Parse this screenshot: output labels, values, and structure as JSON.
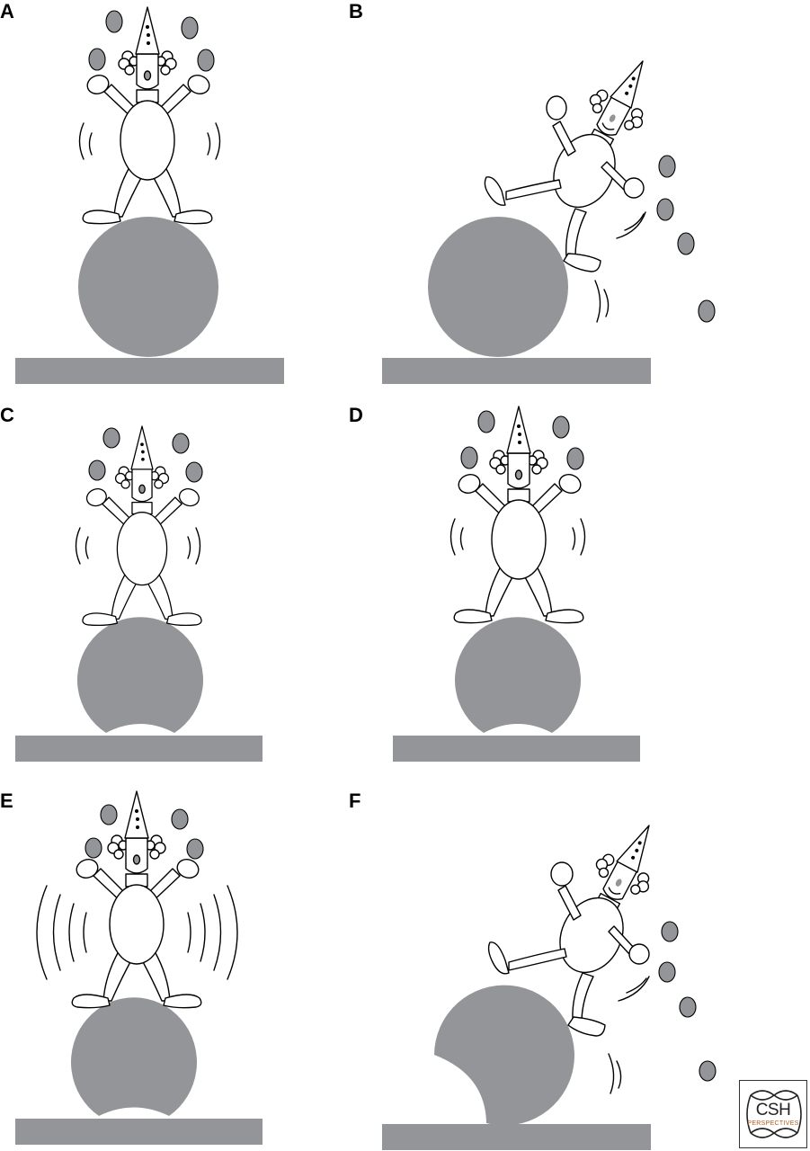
{
  "panels": [
    {
      "id": "A",
      "label": "A"
    },
    {
      "id": "B",
      "label": "B"
    },
    {
      "id": "C",
      "label": "C"
    },
    {
      "id": "D",
      "label": "D"
    },
    {
      "id": "E",
      "label": "E"
    },
    {
      "id": "F",
      "label": "F"
    }
  ],
  "logo": {
    "main": "CSH",
    "sub": "PERSPECTIVES"
  },
  "colors": {
    "ball": "#939598",
    "platform": "#939598",
    "juggling_ball": "#939598",
    "ink": "#000000"
  }
}
